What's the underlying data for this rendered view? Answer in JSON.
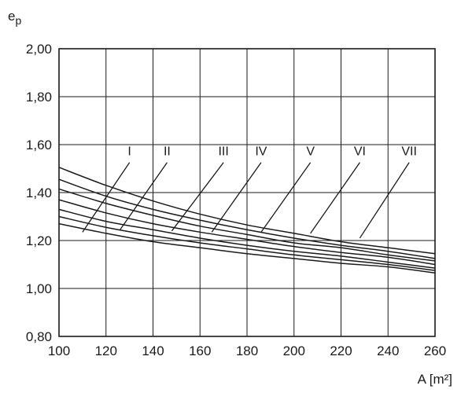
{
  "chart_data": {
    "type": "line",
    "title": "",
    "xlabel": "A [m²]",
    "ylabel": "e",
    "ylabel_sub": "p",
    "xlim": [
      100,
      260
    ],
    "ylim": [
      0.8,
      2.0
    ],
    "xticks": [
      100,
      120,
      140,
      160,
      180,
      200,
      220,
      240,
      260
    ],
    "xtick_labels": [
      "100",
      "120",
      "140",
      "160",
      "180",
      "200",
      "220",
      "240",
      "260"
    ],
    "yticks": [
      0.8,
      1.0,
      1.2,
      1.4,
      1.6,
      1.8,
      2.0
    ],
    "ytick_labels": [
      "0,80",
      "1,00",
      "1,20",
      "1,40",
      "1,60",
      "1,80",
      "2,00"
    ],
    "grid": true,
    "colors": {
      "line": "#1a1a1a",
      "grid": "#1a1a1a",
      "background": "#ffffff"
    },
    "x": [
      100,
      120,
      140,
      160,
      180,
      200,
      220,
      240,
      260
    ],
    "series": [
      {
        "name": "I",
        "values": [
          1.27,
          1.23,
          1.195,
          1.17,
          1.145,
          1.125,
          1.105,
          1.09,
          1.065
        ],
        "label_xy": [
          130,
          1.555
        ],
        "leader_to": [
          110,
          1.235
        ]
      },
      {
        "name": "II",
        "values": [
          1.3,
          1.255,
          1.22,
          1.19,
          1.165,
          1.14,
          1.12,
          1.1,
          1.075
        ],
        "label_xy": [
          146,
          1.555
        ],
        "leader_to": [
          126,
          1.245
        ]
      },
      {
        "name": "III",
        "values": [
          1.33,
          1.28,
          1.245,
          1.21,
          1.18,
          1.155,
          1.135,
          1.11,
          1.085
        ],
        "label_xy": [
          170,
          1.555
        ],
        "leader_to": [
          148,
          1.24
        ]
      },
      {
        "name": "IV",
        "values": [
          1.37,
          1.315,
          1.27,
          1.235,
          1.205,
          1.175,
          1.15,
          1.13,
          1.1
        ],
        "label_xy": [
          186,
          1.555
        ],
        "leader_to": [
          165,
          1.235
        ]
      },
      {
        "name": "V",
        "values": [
          1.415,
          1.355,
          1.305,
          1.26,
          1.225,
          1.19,
          1.17,
          1.14,
          1.115
        ],
        "label_xy": [
          207,
          1.555
        ],
        "leader_to": [
          186,
          1.235
        ]
      },
      {
        "name": "VI",
        "values": [
          1.455,
          1.385,
          1.33,
          1.285,
          1.245,
          1.21,
          1.18,
          1.155,
          1.125
        ],
        "label_xy": [
          228,
          1.555
        ],
        "leader_to": [
          207,
          1.23
        ]
      },
      {
        "name": "VII",
        "values": [
          1.505,
          1.43,
          1.365,
          1.31,
          1.265,
          1.23,
          1.195,
          1.17,
          1.145
        ],
        "label_xy": [
          249,
          1.555
        ],
        "leader_to": [
          228,
          1.21
        ]
      }
    ]
  }
}
